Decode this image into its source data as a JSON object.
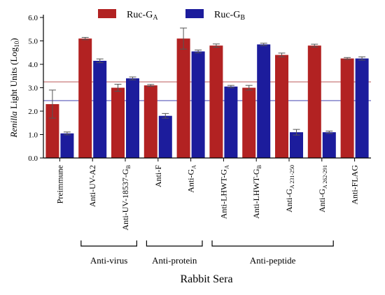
{
  "chart_data": {
    "type": "bar",
    "ylabel_italic": "Renilla",
    "ylabel_rest": " Light Units (Log",
    "ylabel_sub": "10",
    "ylabel_close": ")",
    "xlabel": "Rabbit Sera",
    "ylim": [
      0,
      6
    ],
    "yticks": [
      "0.0",
      "1.0",
      "2.0",
      "3.0",
      "4.0",
      "5.0",
      "6.0"
    ],
    "categories": [
      "Preimmune",
      "Anti-UV-A2",
      "Anti-UV-18537-GB",
      "Anti-F",
      "Anti-GA",
      "Anti-LHWT-GA",
      "Anti-LHWT-GB",
      "Anti-GA 231-250",
      "Anti-GA 262-291",
      "Anti-FLAG"
    ],
    "category_labels": [
      {
        "main": "Preimmune",
        "sub": ""
      },
      {
        "main": "Anti-UV-A2",
        "sub": ""
      },
      {
        "main": "Anti-UV-18537-G",
        "sub": "B"
      },
      {
        "main": "Anti-F",
        "sub": ""
      },
      {
        "main": "Anti-G",
        "sub": "A"
      },
      {
        "main": "Anti-LHWT-G",
        "sub": "A"
      },
      {
        "main": "Anti-LHWT-G",
        "sub": "B"
      },
      {
        "main": "Anti-G",
        "sub": "A 231-250"
      },
      {
        "main": "Anti-G",
        "sub": "A 262-291"
      },
      {
        "main": "Anti-FLAG",
        "sub": ""
      }
    ],
    "series": [
      {
        "name": "Ruc-GA",
        "legend_main": "Ruc-G",
        "legend_sub": "A",
        "color": "#b22222",
        "values": [
          2.3,
          5.1,
          3.0,
          3.1,
          5.1,
          4.8,
          3.0,
          4.4,
          4.8,
          4.25
        ],
        "errors": [
          0.6,
          0.05,
          0.15,
          0.04,
          0.45,
          0.07,
          0.1,
          0.08,
          0.06,
          0.04
        ]
      },
      {
        "name": "Ruc-GB",
        "legend_main": "Ruc-G",
        "legend_sub": "B",
        "color": "#1c1c9c",
        "values": [
          1.05,
          4.15,
          3.4,
          1.8,
          4.55,
          3.05,
          4.85,
          1.1,
          1.1,
          4.25
        ],
        "errors": [
          0.06,
          0.08,
          0.06,
          0.1,
          0.06,
          0.05,
          0.05,
          0.12,
          0.05,
          0.07
        ]
      }
    ],
    "reference_lines": [
      {
        "value": 3.25,
        "color": "#c87878"
      },
      {
        "value": 2.45,
        "color": "#5858b8"
      }
    ],
    "groups": [
      {
        "label": "Anti-virus",
        "from": 1,
        "to": 2
      },
      {
        "label": "Anti-protein",
        "from": 3,
        "to": 4
      },
      {
        "label": "Anti-peptide",
        "from": 5,
        "to": 8
      }
    ],
    "grid": false,
    "legend_position": "top"
  }
}
